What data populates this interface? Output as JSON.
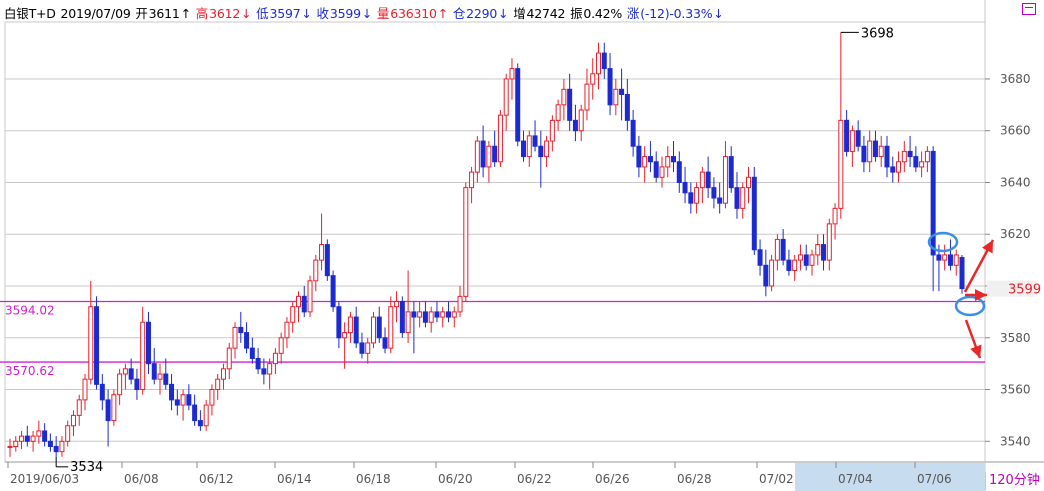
{
  "header": {
    "symbol": "白银T+D",
    "date": "2019/07/09",
    "open_label": "开",
    "open": "3611",
    "open_arrow": "↑",
    "high_label": "高",
    "high": "3612",
    "high_arrow": "↓",
    "low_label": "低",
    "low": "3597",
    "low_arrow": "↓",
    "close_label": "收",
    "close": "3599",
    "close_arrow": "↓",
    "volume_label": "量",
    "volume": "636310",
    "volume_arrow": "↑",
    "oi_label": "仓",
    "oi": "2290",
    "oi_arrow": "↓",
    "add_label": "增",
    "add": "42742",
    "amp_label": "振",
    "amp": "0.42%",
    "chg_label": "涨",
    "chg": "(-12)-0.33%",
    "chg_arrow": "↓"
  },
  "period_label": "120分钟",
  "colors": {
    "up": "#e8202a",
    "down": "#1c2bd0",
    "line": "#d020d0",
    "annot_red": "#e82828",
    "annot_blue": "#3a8ee8",
    "grid": "#c8c8c8"
  },
  "chart_data": {
    "type": "candlestick",
    "ylim": [
      3532,
      3702
    ],
    "yticks": [
      "3540",
      "3560",
      "3580",
      "3600",
      "3620",
      "3640",
      "3660",
      "3680"
    ],
    "xticks": [
      "2019/06/03",
      "06/08",
      "06/12",
      "06/14",
      "06/18",
      "06/20",
      "06/22",
      "06/26",
      "06/28",
      "07/02",
      "07/04",
      "07/06"
    ],
    "last_price": "3599",
    "h_lines": [
      {
        "value": 3594.02,
        "label": "3594.02"
      },
      {
        "value": 3570.62,
        "label": "3570.62"
      }
    ],
    "annotations": [
      {
        "label": "3698",
        "value": 3698
      },
      {
        "label": "3534",
        "value": 3534
      }
    ],
    "candles": [
      [
        3538,
        3541,
        3534,
        3538
      ],
      [
        3538,
        3542,
        3536,
        3540
      ],
      [
        3540,
        3544,
        3537,
        3542
      ],
      [
        3542,
        3546,
        3538,
        3540
      ],
      [
        3540,
        3544,
        3536,
        3542
      ],
      [
        3542,
        3548,
        3539,
        3544
      ],
      [
        3544,
        3547,
        3538,
        3540
      ],
      [
        3540,
        3543,
        3536,
        3538
      ],
      [
        3538,
        3542,
        3534,
        3536
      ],
      [
        3536,
        3542,
        3534,
        3540
      ],
      [
        3540,
        3548,
        3538,
        3546
      ],
      [
        3546,
        3552,
        3542,
        3550
      ],
      [
        3550,
        3558,
        3546,
        3556
      ],
      [
        3556,
        3566,
        3552,
        3564
      ],
      [
        3564,
        3602,
        3562,
        3592
      ],
      [
        3592,
        3596,
        3560,
        3562
      ],
      [
        3562,
        3566,
        3552,
        3556
      ],
      [
        3556,
        3560,
        3538,
        3548
      ],
      [
        3548,
        3560,
        3546,
        3558
      ],
      [
        3558,
        3568,
        3554,
        3566
      ],
      [
        3566,
        3570,
        3560,
        3568
      ],
      [
        3568,
        3572,
        3562,
        3564
      ],
      [
        3564,
        3568,
        3556,
        3560
      ],
      [
        3560,
        3592,
        3558,
        3586
      ],
      [
        3586,
        3590,
        3566,
        3570
      ],
      [
        3570,
        3576,
        3562,
        3564
      ],
      [
        3564,
        3570,
        3558,
        3566
      ],
      [
        3566,
        3572,
        3560,
        3562
      ],
      [
        3562,
        3566,
        3552,
        3556
      ],
      [
        3556,
        3560,
        3550,
        3554
      ],
      [
        3554,
        3560,
        3548,
        3558
      ],
      [
        3558,
        3562,
        3552,
        3554
      ],
      [
        3554,
        3558,
        3546,
        3548
      ],
      [
        3548,
        3552,
        3544,
        3546
      ],
      [
        3546,
        3556,
        3544,
        3554
      ],
      [
        3554,
        3562,
        3550,
        3560
      ],
      [
        3560,
        3566,
        3556,
        3564
      ],
      [
        3564,
        3570,
        3560,
        3568
      ],
      [
        3568,
        3578,
        3564,
        3576
      ],
      [
        3576,
        3586,
        3572,
        3584
      ],
      [
        3584,
        3590,
        3578,
        3582
      ],
      [
        3582,
        3586,
        3574,
        3576
      ],
      [
        3576,
        3580,
        3570,
        3572
      ],
      [
        3572,
        3576,
        3566,
        3568
      ],
      [
        3568,
        3572,
        3562,
        3566
      ],
      [
        3566,
        3572,
        3560,
        3570
      ],
      [
        3570,
        3576,
        3566,
        3574
      ],
      [
        3574,
        3582,
        3570,
        3580
      ],
      [
        3580,
        3588,
        3576,
        3586
      ],
      [
        3586,
        3594,
        3582,
        3592
      ],
      [
        3592,
        3598,
        3586,
        3596
      ],
      [
        3596,
        3600,
        3588,
        3590
      ],
      [
        3590,
        3604,
        3588,
        3602
      ],
      [
        3602,
        3612,
        3598,
        3610
      ],
      [
        3610,
        3628,
        3606,
        3616
      ],
      [
        3616,
        3618,
        3602,
        3604
      ],
      [
        3604,
        3606,
        3590,
        3592
      ],
      [
        3592,
        3594,
        3576,
        3580
      ],
      [
        3580,
        3586,
        3568,
        3582
      ],
      [
        3582,
        3590,
        3578,
        3588
      ],
      [
        3588,
        3592,
        3576,
        3578
      ],
      [
        3578,
        3582,
        3572,
        3574
      ],
      [
        3574,
        3580,
        3570,
        3578
      ],
      [
        3578,
        3590,
        3576,
        3588
      ],
      [
        3588,
        3592,
        3578,
        3580
      ],
      [
        3580,
        3584,
        3574,
        3576
      ],
      [
        3576,
        3596,
        3574,
        3592
      ],
      [
        3592,
        3598,
        3586,
        3594
      ],
      [
        3594,
        3596,
        3580,
        3582
      ],
      [
        3582,
        3606,
        3578,
        3590
      ],
      [
        3590,
        3594,
        3574,
        3588
      ],
      [
        3588,
        3594,
        3584,
        3590
      ],
      [
        3590,
        3594,
        3584,
        3586
      ],
      [
        3586,
        3592,
        3582,
        3590
      ],
      [
        3590,
        3594,
        3586,
        3588
      ],
      [
        3588,
        3592,
        3584,
        3590
      ],
      [
        3590,
        3594,
        3586,
        3588
      ],
      [
        3588,
        3592,
        3584,
        3590
      ],
      [
        3590,
        3600,
        3588,
        3596
      ],
      [
        3596,
        3640,
        3594,
        3638
      ],
      [
        3638,
        3646,
        3632,
        3644
      ],
      [
        3644,
        3658,
        3640,
        3656
      ],
      [
        3656,
        3662,
        3642,
        3646
      ],
      [
        3646,
        3656,
        3640,
        3654
      ],
      [
        3654,
        3660,
        3646,
        3648
      ],
      [
        3648,
        3668,
        3646,
        3666
      ],
      [
        3666,
        3682,
        3660,
        3680
      ],
      [
        3680,
        3688,
        3672,
        3684
      ],
      [
        3684,
        3686,
        3654,
        3656
      ],
      [
        3656,
        3660,
        3648,
        3650
      ],
      [
        3650,
        3660,
        3646,
        3658
      ],
      [
        3658,
        3664,
        3652,
        3654
      ],
      [
        3654,
        3660,
        3638,
        3650
      ],
      [
        3650,
        3658,
        3646,
        3656
      ],
      [
        3656,
        3666,
        3652,
        3664
      ],
      [
        3664,
        3672,
        3660,
        3670
      ],
      [
        3670,
        3680,
        3664,
        3676
      ],
      [
        3676,
        3682,
        3660,
        3664
      ],
      [
        3664,
        3670,
        3656,
        3660
      ],
      [
        3660,
        3670,
        3656,
        3668
      ],
      [
        3668,
        3684,
        3664,
        3678
      ],
      [
        3678,
        3688,
        3672,
        3682
      ],
      [
        3682,
        3694,
        3676,
        3690
      ],
      [
        3690,
        3694,
        3680,
        3684
      ],
      [
        3684,
        3690,
        3666,
        3670
      ],
      [
        3670,
        3680,
        3666,
        3676
      ],
      [
        3676,
        3684,
        3664,
        3674
      ],
      [
        3674,
        3680,
        3660,
        3664
      ],
      [
        3664,
        3668,
        3650,
        3654
      ],
      [
        3654,
        3658,
        3642,
        3646
      ],
      [
        3646,
        3654,
        3640,
        3650
      ],
      [
        3650,
        3656,
        3644,
        3648
      ],
      [
        3648,
        3652,
        3640,
        3642
      ],
      [
        3642,
        3650,
        3638,
        3646
      ],
      [
        3646,
        3654,
        3642,
        3650
      ],
      [
        3650,
        3656,
        3644,
        3648
      ],
      [
        3648,
        3652,
        3636,
        3640
      ],
      [
        3640,
        3646,
        3632,
        3636
      ],
      [
        3636,
        3640,
        3628,
        3632
      ],
      [
        3632,
        3640,
        3628,
        3638
      ],
      [
        3638,
        3646,
        3632,
        3644
      ],
      [
        3644,
        3650,
        3634,
        3638
      ],
      [
        3638,
        3642,
        3630,
        3634
      ],
      [
        3634,
        3640,
        3628,
        3632
      ],
      [
        3632,
        3656,
        3630,
        3650
      ],
      [
        3650,
        3654,
        3636,
        3638
      ],
      [
        3638,
        3644,
        3626,
        3630
      ],
      [
        3630,
        3640,
        3626,
        3638
      ],
      [
        3638,
        3646,
        3632,
        3642
      ],
      [
        3642,
        3646,
        3612,
        3614
      ],
      [
        3614,
        3618,
        3604,
        3608
      ],
      [
        3608,
        3614,
        3596,
        3600
      ],
      [
        3600,
        3612,
        3598,
        3610
      ],
      [
        3610,
        3620,
        3606,
        3618
      ],
      [
        3618,
        3622,
        3608,
        3610
      ],
      [
        3610,
        3614,
        3604,
        3606
      ],
      [
        3606,
        3612,
        3602,
        3610
      ],
      [
        3610,
        3616,
        3606,
        3612
      ],
      [
        3612,
        3616,
        3606,
        3608
      ],
      [
        3608,
        3614,
        3604,
        3612
      ],
      [
        3612,
        3620,
        3608,
        3616
      ],
      [
        3616,
        3620,
        3606,
        3610
      ],
      [
        3610,
        3626,
        3606,
        3624
      ],
      [
        3624,
        3632,
        3618,
        3630
      ],
      [
        3630,
        3698,
        3626,
        3664
      ],
      [
        3664,
        3668,
        3650,
        3652
      ],
      [
        3652,
        3662,
        3646,
        3660
      ],
      [
        3660,
        3664,
        3652,
        3654
      ],
      [
        3654,
        3658,
        3644,
        3648
      ],
      [
        3648,
        3660,
        3644,
        3656
      ],
      [
        3656,
        3660,
        3648,
        3650
      ],
      [
        3650,
        3658,
        3646,
        3654
      ],
      [
        3654,
        3658,
        3642,
        3646
      ],
      [
        3646,
        3650,
        3640,
        3644
      ],
      [
        3644,
        3652,
        3640,
        3648
      ],
      [
        3648,
        3656,
        3644,
        3652
      ],
      [
        3652,
        3658,
        3646,
        3650
      ],
      [
        3650,
        3654,
        3644,
        3646
      ],
      [
        3646,
        3652,
        3642,
        3648
      ],
      [
        3648,
        3654,
        3644,
        3652
      ],
      [
        3652,
        3654,
        3598,
        3612
      ],
      [
        3612,
        3616,
        3598,
        3610
      ],
      [
        3610,
        3616,
        3606,
        3612
      ],
      [
        3612,
        3618,
        3606,
        3608
      ],
      [
        3608,
        3614,
        3604,
        3612
      ],
      [
        3611,
        3612,
        3597,
        3599
      ]
    ]
  }
}
